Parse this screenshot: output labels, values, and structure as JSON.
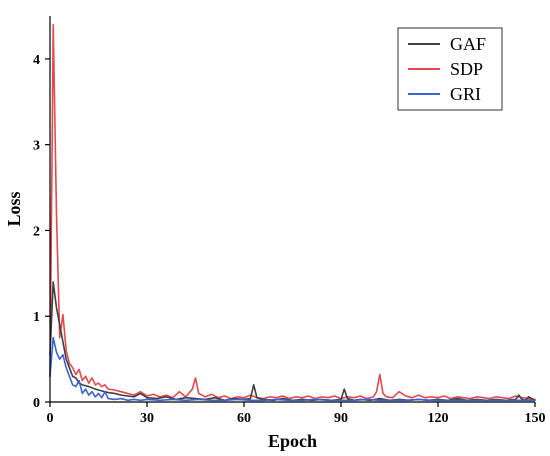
{
  "chart_data": {
    "type": "line",
    "title": "",
    "xlabel": "Epoch",
    "ylabel": "Loss",
    "xlim": [
      0,
      150
    ],
    "ylim": [
      0,
      4.5
    ],
    "xticks": [
      0,
      30,
      60,
      90,
      120,
      150
    ],
    "yticks": [
      0,
      1,
      2,
      3,
      4
    ],
    "grid": false,
    "legend_position": "top-right",
    "series": [
      {
        "name": "GAF",
        "color": "#404040",
        "x": [
          0,
          1,
          2,
          3,
          4,
          5,
          6,
          7,
          8,
          9,
          10,
          12,
          14,
          16,
          18,
          20,
          22,
          24,
          26,
          28,
          30,
          33,
          36,
          39,
          42,
          45,
          48,
          51,
          54,
          57,
          60,
          62,
          63,
          64,
          66,
          69,
          72,
          75,
          78,
          81,
          84,
          87,
          90,
          91,
          92,
          94,
          96,
          99,
          102,
          105,
          108,
          111,
          114,
          117,
          120,
          123,
          126,
          129,
          132,
          135,
          138,
          141,
          144,
          145,
          146,
          147,
          148,
          150
        ],
        "y": [
          0.55,
          1.4,
          1.1,
          0.9,
          0.7,
          0.5,
          0.4,
          0.3,
          0.28,
          0.22,
          0.2,
          0.18,
          0.15,
          0.13,
          0.11,
          0.1,
          0.08,
          0.07,
          0.06,
          0.1,
          0.05,
          0.04,
          0.06,
          0.03,
          0.05,
          0.04,
          0.03,
          0.05,
          0.02,
          0.04,
          0.03,
          0.04,
          0.2,
          0.05,
          0.03,
          0.02,
          0.04,
          0.02,
          0.03,
          0.02,
          0.03,
          0.02,
          0.03,
          0.15,
          0.04,
          0.02,
          0.03,
          0.02,
          0.04,
          0.02,
          0.03,
          0.02,
          0.03,
          0.02,
          0.03,
          0.02,
          0.04,
          0.02,
          0.03,
          0.02,
          0.03,
          0.02,
          0.03,
          0.08,
          0.03,
          0.02,
          0.06,
          0.02
        ]
      },
      {
        "name": "SDP",
        "color": "#e8484b",
        "x": [
          0,
          1,
          2,
          3,
          4,
          5,
          6,
          7,
          8,
          9,
          10,
          11,
          12,
          13,
          14,
          15,
          16,
          17,
          18,
          20,
          22,
          24,
          26,
          28,
          30,
          32,
          34,
          36,
          38,
          40,
          42,
          44,
          45,
          46,
          48,
          50,
          52,
          54,
          56,
          58,
          60,
          62,
          64,
          66,
          68,
          70,
          72,
          74,
          76,
          78,
          80,
          82,
          84,
          86,
          88,
          90,
          92,
          94,
          96,
          98,
          100,
          101,
          102,
          103,
          104,
          106,
          108,
          110,
          112,
          114,
          116,
          118,
          120,
          122,
          124,
          126,
          128,
          130,
          132,
          134,
          136,
          138,
          140,
          142,
          144,
          146,
          148,
          150
        ],
        "y": [
          0.3,
          4.4,
          2.2,
          0.75,
          1.02,
          0.6,
          0.45,
          0.4,
          0.32,
          0.38,
          0.25,
          0.3,
          0.22,
          0.28,
          0.2,
          0.22,
          0.18,
          0.2,
          0.15,
          0.14,
          0.12,
          0.1,
          0.08,
          0.12,
          0.07,
          0.09,
          0.06,
          0.08,
          0.05,
          0.12,
          0.06,
          0.15,
          0.28,
          0.1,
          0.06,
          0.09,
          0.05,
          0.07,
          0.04,
          0.06,
          0.05,
          0.08,
          0.05,
          0.04,
          0.06,
          0.05,
          0.07,
          0.04,
          0.06,
          0.05,
          0.07,
          0.04,
          0.06,
          0.05,
          0.07,
          0.04,
          0.06,
          0.05,
          0.07,
          0.04,
          0.06,
          0.12,
          0.32,
          0.1,
          0.06,
          0.05,
          0.12,
          0.07,
          0.05,
          0.08,
          0.05,
          0.06,
          0.05,
          0.07,
          0.04,
          0.06,
          0.05,
          0.04,
          0.06,
          0.05,
          0.04,
          0.06,
          0.05,
          0.04,
          0.07,
          0.05,
          0.04,
          0.03
        ]
      },
      {
        "name": "GRI",
        "color": "#3a62d8",
        "x": [
          0,
          1,
          2,
          3,
          4,
          5,
          6,
          7,
          8,
          9,
          10,
          11,
          12,
          13,
          14,
          15,
          16,
          17,
          18,
          20,
          22,
          24,
          26,
          28,
          30,
          34,
          38,
          42,
          46,
          50,
          54,
          58,
          62,
          66,
          70,
          74,
          78,
          82,
          86,
          90,
          94,
          98,
          102,
          106,
          110,
          114,
          118,
          122,
          126,
          130,
          134,
          138,
          142,
          146,
          150
        ],
        "y": [
          0.3,
          0.75,
          0.58,
          0.5,
          0.55,
          0.4,
          0.3,
          0.2,
          0.18,
          0.25,
          0.1,
          0.15,
          0.08,
          0.12,
          0.06,
          0.1,
          0.05,
          0.12,
          0.04,
          0.03,
          0.04,
          0.02,
          0.03,
          0.02,
          0.03,
          0.02,
          0.03,
          0.02,
          0.03,
          0.02,
          0.02,
          0.03,
          0.02,
          0.02,
          0.03,
          0.02,
          0.02,
          0.03,
          0.02,
          0.02,
          0.02,
          0.03,
          0.02,
          0.02,
          0.02,
          0.03,
          0.02,
          0.02,
          0.02,
          0.02,
          0.02,
          0.02,
          0.02,
          0.02,
          0.02
        ]
      }
    ]
  }
}
